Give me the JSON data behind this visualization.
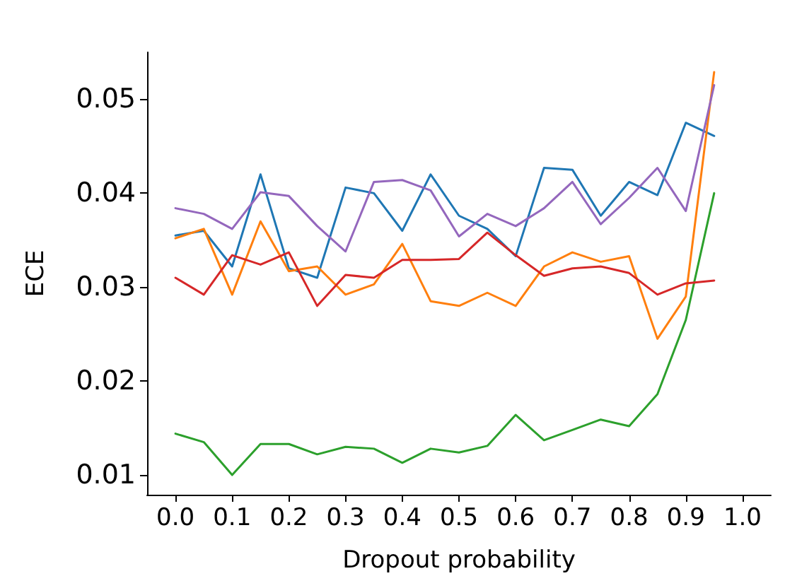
{
  "chart_data": {
    "type": "line",
    "xlabel": "Dropout probability",
    "ylabel": "ECE",
    "x": [
      0,
      0.05,
      0.1,
      0.15,
      0.2,
      0.25,
      0.3,
      0.35,
      0.4,
      0.45,
      0.5,
      0.55,
      0.6,
      0.65,
      0.7,
      0.75,
      0.8,
      0.85,
      0.9,
      0.95
    ],
    "series": [
      {
        "color": "#1f77b4",
        "values": [
          0.0355,
          0.036,
          0.0322,
          0.042,
          0.032,
          0.031,
          0.0406,
          0.04,
          0.036,
          0.042,
          0.0376,
          0.0362,
          0.0333,
          0.0427,
          0.0425,
          0.0376,
          0.0412,
          0.0398,
          0.0475,
          0.0461
        ]
      },
      {
        "color": "#ff7f0e",
        "values": [
          0.0352,
          0.0362,
          0.0292,
          0.037,
          0.0317,
          0.0322,
          0.0292,
          0.0303,
          0.0346,
          0.0285,
          0.028,
          0.0294,
          0.028,
          0.0322,
          0.0337,
          0.0327,
          0.0333,
          0.0245,
          0.029,
          0.0529
        ]
      },
      {
        "color": "#2ca02c",
        "values": [
          0.0144,
          0.0135,
          0.01,
          0.0133,
          0.0133,
          0.0122,
          0.013,
          0.0128,
          0.0113,
          0.0128,
          0.0124,
          0.0131,
          0.0164,
          0.0137,
          0.0148,
          0.0159,
          0.0152,
          0.0186,
          0.0265,
          0.04
        ]
      },
      {
        "color": "#d62728",
        "values": [
          0.031,
          0.0292,
          0.0334,
          0.0324,
          0.0337,
          0.028,
          0.0313,
          0.031,
          0.0329,
          0.0329,
          0.033,
          0.0358,
          0.0334,
          0.0312,
          0.032,
          0.0322,
          0.0315,
          0.0292,
          0.0304,
          0.0307
        ]
      },
      {
        "color": "#9467bd",
        "values": [
          0.0384,
          0.0378,
          0.0362,
          0.0401,
          0.0397,
          0.0365,
          0.0338,
          0.0412,
          0.0414,
          0.0403,
          0.0354,
          0.0378,
          0.0365,
          0.0384,
          0.0412,
          0.0367,
          0.0395,
          0.0427,
          0.0381,
          0.0515
        ]
      }
    ],
    "xlim": [
      -0.05,
      1.05
    ],
    "ylim": [
      0.0079,
      0.055
    ],
    "xticks": [
      {
        "value": 0,
        "label": "0.0"
      },
      0.1,
      0.2,
      0.3,
      0.4,
      0.5,
      0.6,
      0.7,
      0.8,
      0.9,
      {
        "value": 1,
        "label": "1.0"
      }
    ],
    "yticks": [
      0.01,
      0.02,
      0.03,
      0.04,
      0.05
    ],
    "grid": false,
    "marker": "none",
    "line_style": "solid"
  }
}
